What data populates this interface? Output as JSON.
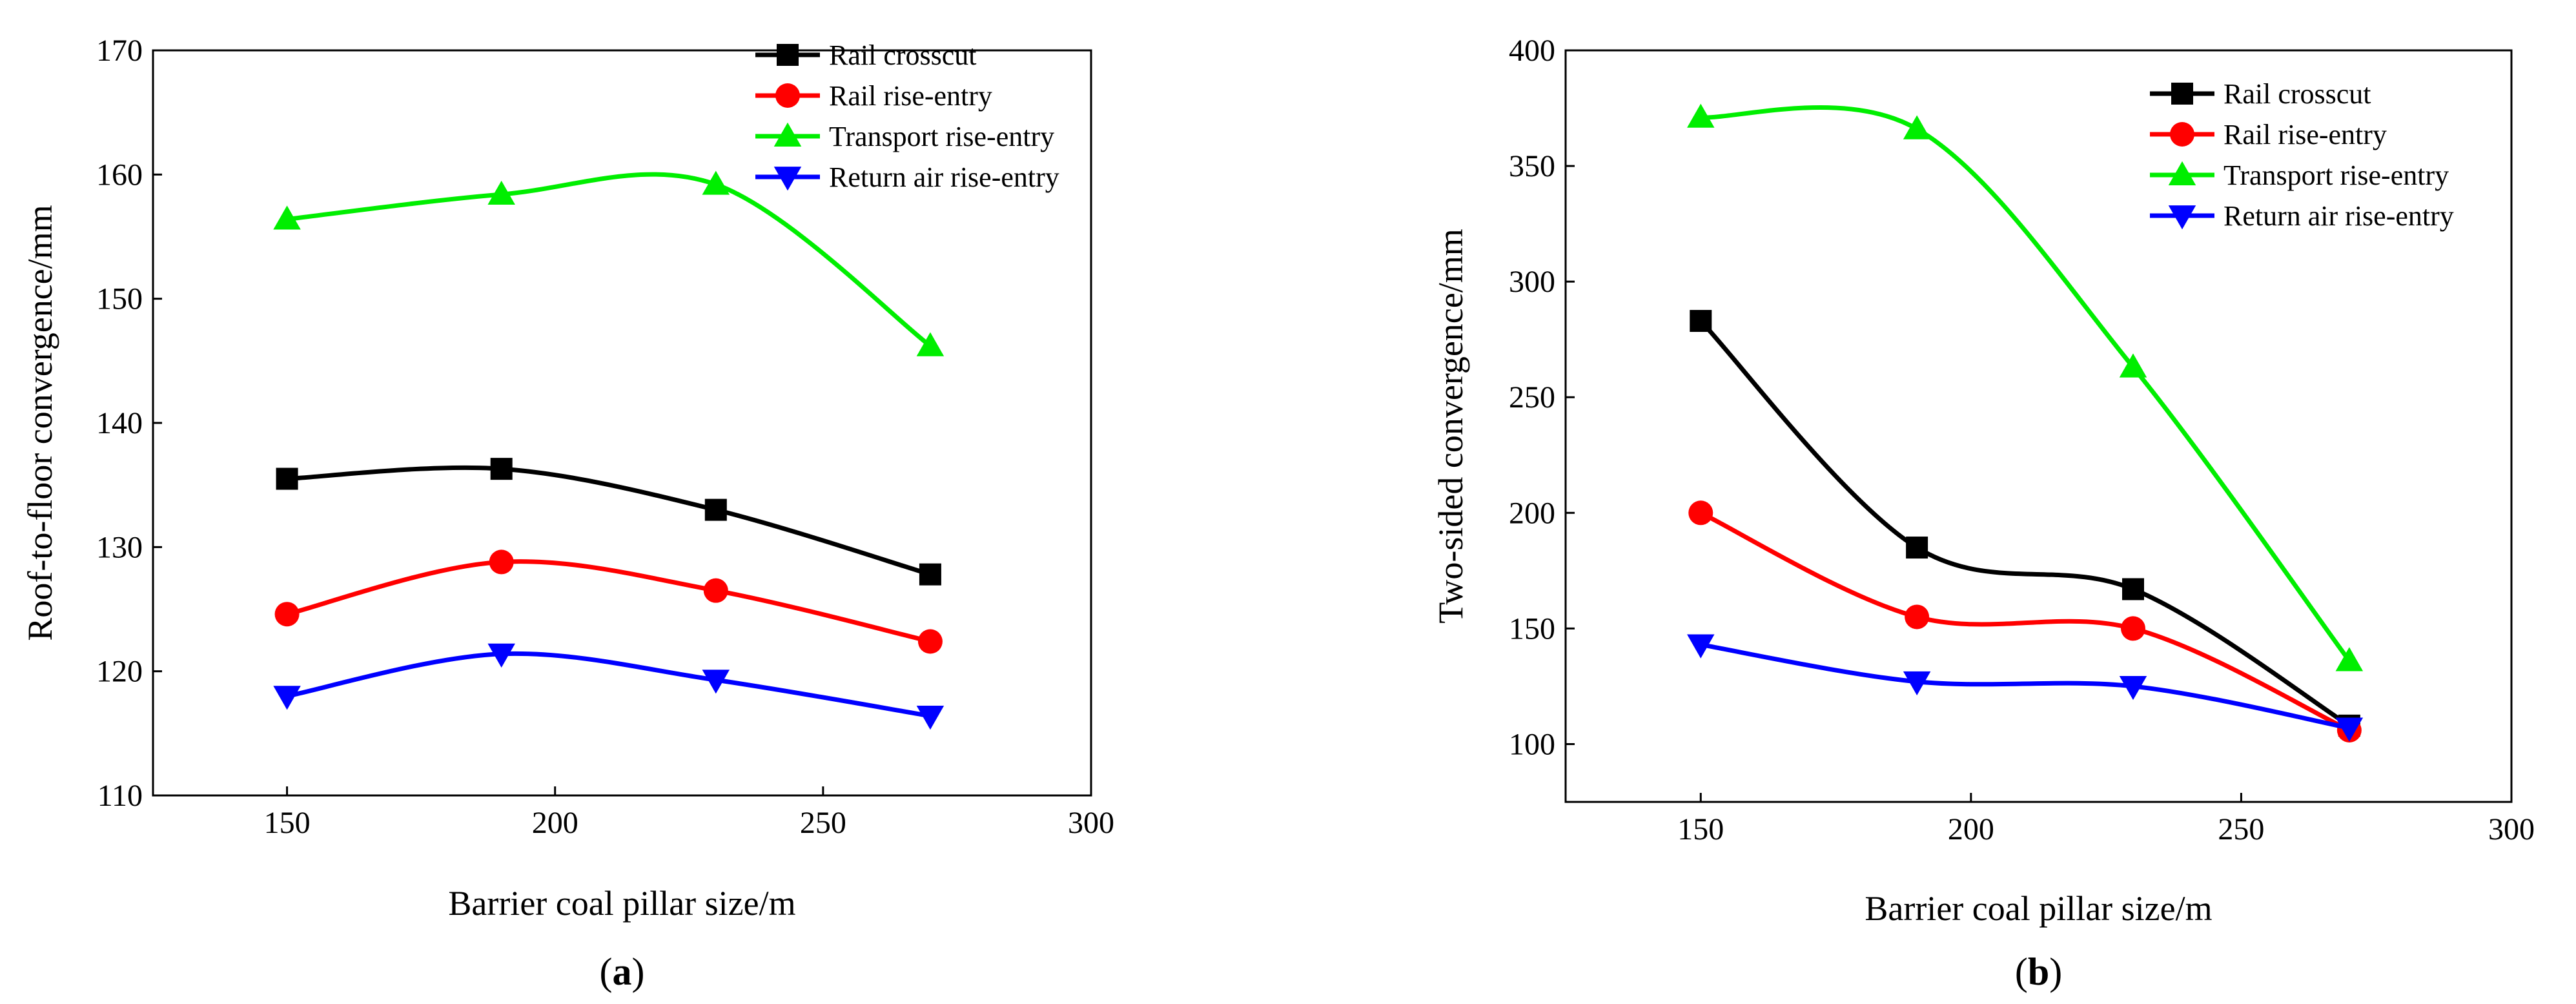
{
  "chart_data": [
    {
      "type": "line",
      "panel": "a",
      "panel_label": "(a)",
      "xlabel": "Barrier coal pillar size/m",
      "ylabel": "Roof-to-floor convergence/mm",
      "xlim": [
        125,
        300
      ],
      "ylim": [
        110,
        170
      ],
      "xticks": [
        150,
        200,
        250,
        300
      ],
      "yticks": [
        110,
        120,
        130,
        140,
        150,
        160,
        170
      ],
      "legend_position": "top-right",
      "x": [
        150,
        190,
        230,
        270
      ],
      "series": [
        {
          "name": "Rail crosscut",
          "color": "#000000",
          "marker": "square",
          "values": [
            135.5,
            136.3,
            133.0,
            127.8
          ]
        },
        {
          "name": "Rail rise-entry",
          "color": "#ff0000",
          "marker": "circle",
          "values": [
            124.6,
            128.8,
            126.5,
            122.4
          ]
        },
        {
          "name": "Transport rise-entry",
          "color": "#00ee00",
          "marker": "triangle-up",
          "values": [
            156.4,
            158.4,
            159.2,
            146.2
          ]
        },
        {
          "name": "Return air rise-entry",
          "color": "#0000ff",
          "marker": "triangle-down",
          "values": [
            118.0,
            121.4,
            119.3,
            116.4
          ]
        }
      ]
    },
    {
      "type": "line",
      "panel": "b",
      "panel_label": "(b)",
      "xlabel": "Barrier coal pillar size/m",
      "ylabel": "Two-sided convergence/mm",
      "xlim": [
        125,
        300
      ],
      "ylim": [
        75,
        400
      ],
      "xticks": [
        150,
        200,
        250,
        300
      ],
      "yticks": [
        100,
        150,
        200,
        250,
        300,
        350,
        400
      ],
      "legend_position": "top-right",
      "x": [
        150,
        190,
        230,
        270
      ],
      "series": [
        {
          "name": "Rail crosscut",
          "color": "#000000",
          "marker": "square",
          "values": [
            283,
            185,
            167,
            108
          ]
        },
        {
          "name": "Rail rise-entry",
          "color": "#ff0000",
          "marker": "circle",
          "values": [
            200,
            155,
            150,
            106
          ]
        },
        {
          "name": "Transport rise-entry",
          "color": "#00ee00",
          "marker": "triangle-up",
          "values": [
            371,
            366,
            263,
            136
          ]
        },
        {
          "name": "Return air rise-entry",
          "color": "#0000ff",
          "marker": "triangle-down",
          "values": [
            143,
            127,
            125,
            107
          ]
        }
      ]
    }
  ]
}
